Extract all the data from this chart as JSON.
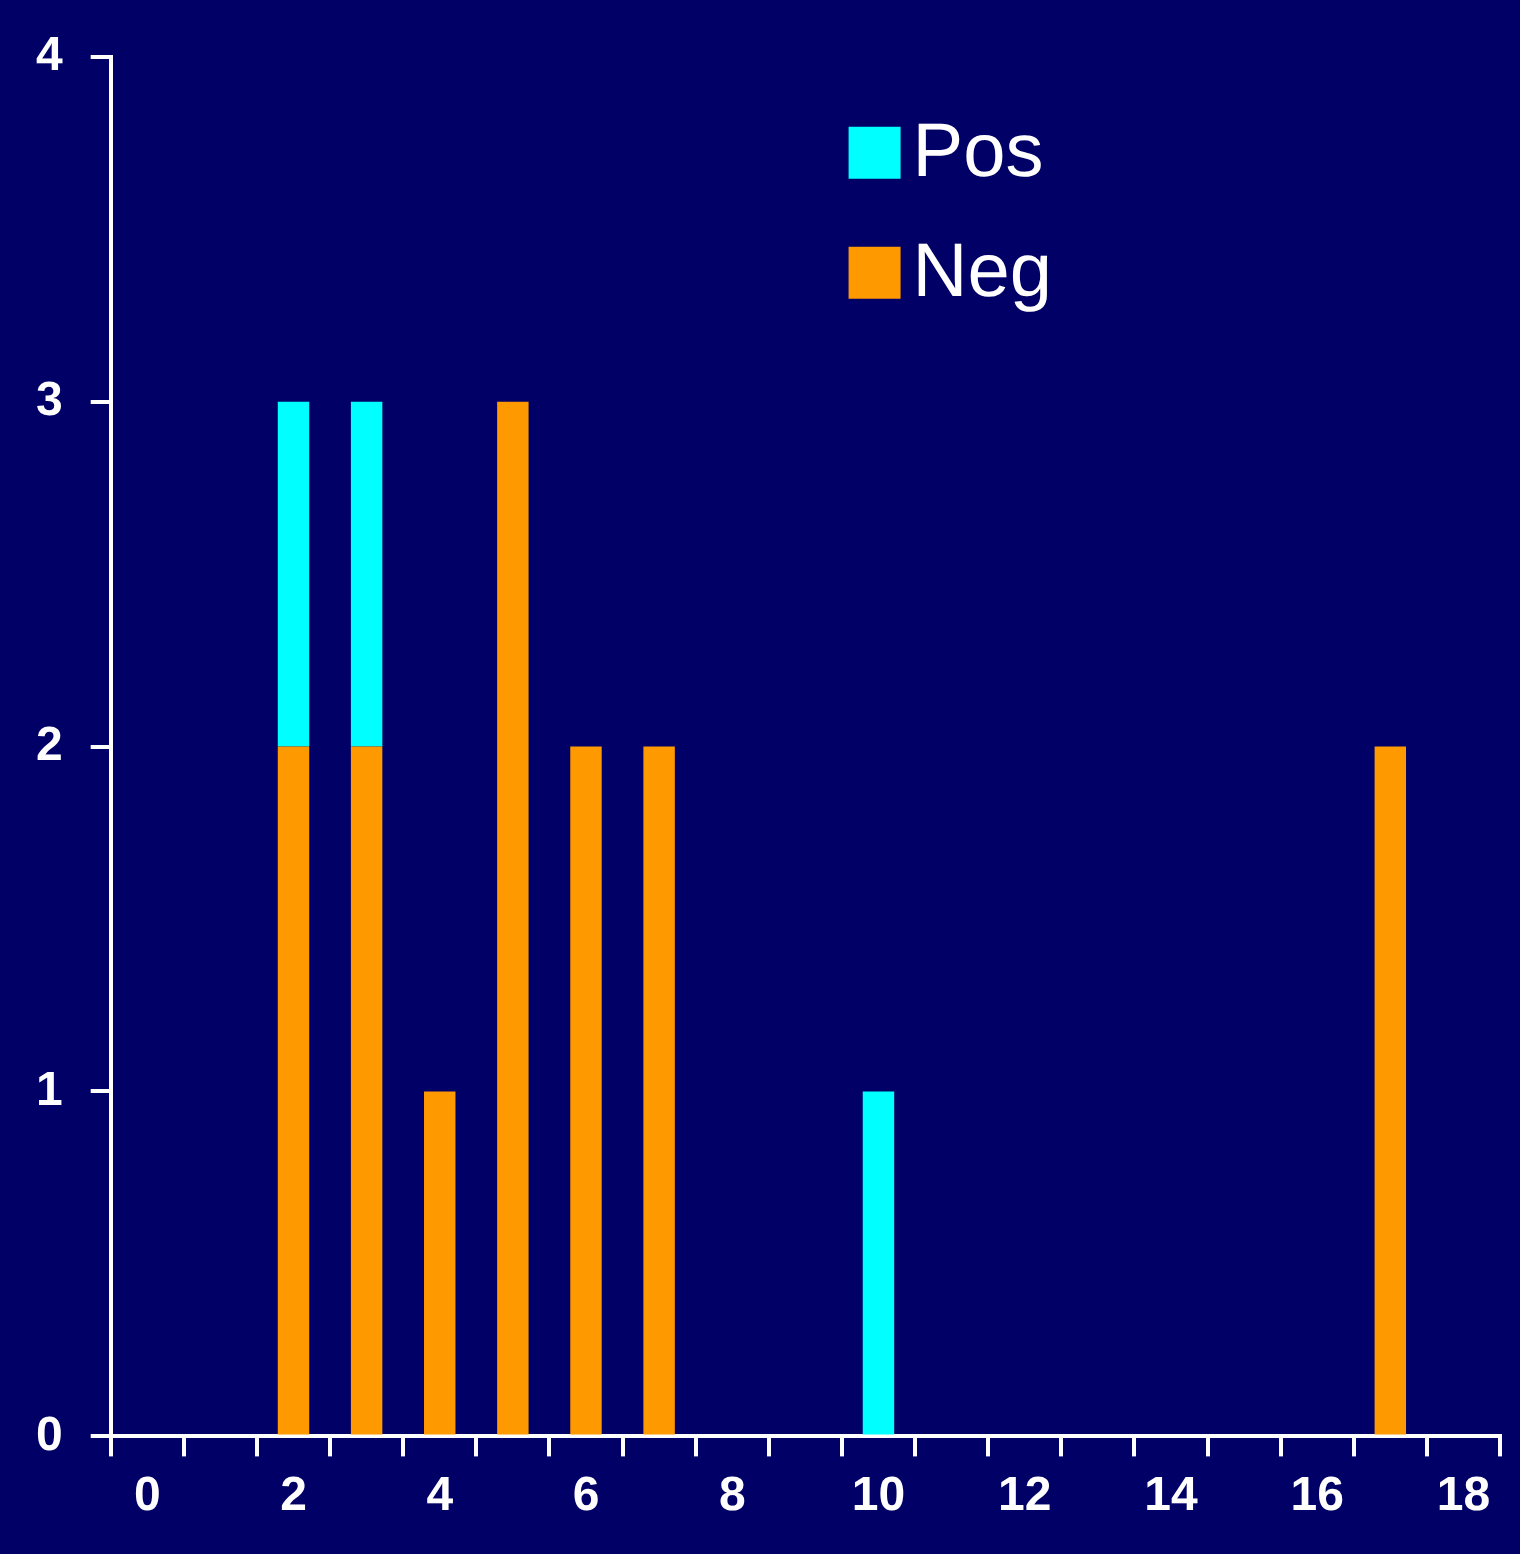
{
  "chart_data": {
    "type": "bar",
    "stacked": true,
    "categories": [
      "0",
      null,
      "2",
      null,
      "4",
      null,
      "6",
      null,
      "8",
      null,
      "10",
      null,
      "12",
      null,
      "14",
      null,
      "16",
      null,
      "18"
    ],
    "series": [
      {
        "name": "Neg",
        "color": "#ff9900",
        "values": [
          null,
          null,
          2,
          2,
          1,
          3,
          2,
          2,
          null,
          null,
          null,
          null,
          null,
          null,
          null,
          null,
          null,
          2,
          null
        ]
      },
      {
        "name": "Pos",
        "color": "#00ffff",
        "values": [
          null,
          null,
          1,
          1,
          null,
          null,
          null,
          null,
          null,
          null,
          1,
          null,
          null,
          null,
          null,
          null,
          null,
          null,
          null
        ]
      }
    ],
    "ylim": [
      0,
      4
    ],
    "yticks": [
      0,
      1,
      2,
      3,
      4
    ],
    "grid": false,
    "legend": "top right"
  }
}
